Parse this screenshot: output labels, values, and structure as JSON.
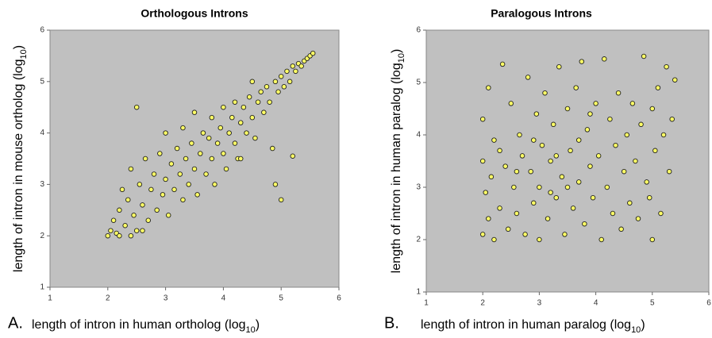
{
  "chart_data": [
    {
      "type": "scatter",
      "panel_label": "A.",
      "title": "Orthologous Introns",
      "x_label": {
        "text": "length of intron in human ortholog (log",
        "sub": "10",
        "end": ")"
      },
      "y_label": {
        "text": "length of intron in mouse ortholog (log",
        "sub": "10",
        "end": ")"
      },
      "xlim": [
        1,
        6
      ],
      "ylim": [
        1,
        6
      ],
      "xticks": [
        1,
        2,
        3,
        4,
        5,
        6
      ],
      "yticks": [
        1,
        2,
        3,
        4,
        5,
        6
      ],
      "background": "#c0c0c0",
      "color": "#ffff66",
      "x": [
        2.0,
        2.05,
        2.1,
        2.15,
        2.2,
        2.25,
        2.3,
        2.35,
        2.4,
        2.45,
        2.5,
        2.5,
        2.55,
        2.6,
        2.65,
        2.7,
        2.75,
        2.8,
        2.85,
        2.9,
        2.95,
        3.0,
        3.0,
        3.05,
        3.1,
        3.15,
        3.2,
        3.25,
        3.3,
        3.3,
        3.35,
        3.4,
        3.45,
        3.5,
        3.5,
        3.55,
        3.6,
        3.65,
        3.7,
        3.75,
        3.8,
        3.8,
        3.85,
        3.9,
        3.95,
        4.0,
        4.0,
        4.05,
        4.1,
        4.15,
        4.2,
        4.2,
        4.25,
        4.3,
        4.35,
        4.4,
        4.45,
        4.5,
        4.5,
        4.55,
        4.6,
        4.65,
        4.7,
        4.75,
        4.8,
        4.85,
        4.9,
        4.9,
        4.95,
        5.0,
        5.0,
        5.05,
        5.1,
        5.15,
        5.2,
        5.2,
        5.25,
        5.3,
        5.35,
        5.4,
        5.45,
        5.5,
        5.55,
        4.3,
        2.2,
        2.4,
        2.6
      ],
      "y": [
        2.0,
        2.1,
        2.3,
        2.05,
        2.5,
        2.9,
        2.2,
        2.7,
        3.3,
        2.4,
        4.5,
        2.1,
        3.0,
        2.6,
        3.5,
        2.3,
        2.9,
        3.2,
        2.5,
        3.6,
        2.8,
        3.1,
        4.0,
        2.4,
        3.4,
        2.9,
        3.7,
        3.2,
        2.7,
        4.1,
        3.5,
        3.0,
        3.8,
        3.3,
        4.4,
        2.8,
        3.6,
        4.0,
        3.2,
        3.9,
        3.5,
        4.3,
        3.0,
        3.8,
        4.1,
        3.6,
        4.5,
        3.3,
        4.0,
        4.3,
        3.8,
        4.6,
        3.5,
        4.2,
        4.5,
        4.0,
        4.7,
        4.3,
        5.0,
        3.9,
        4.6,
        4.8,
        4.4,
        4.9,
        4.6,
        3.7,
        5.0,
        3.0,
        4.8,
        5.1,
        2.7,
        4.9,
        5.2,
        5.0,
        5.3,
        3.55,
        5.2,
        5.35,
        5.3,
        5.4,
        5.45,
        5.5,
        5.55,
        3.5,
        2.0,
        2.0,
        2.1
      ]
    },
    {
      "type": "scatter",
      "panel_label": "B.",
      "title": "Paralogous Introns",
      "x_label": {
        "text": "length of intron in human paralog (log",
        "sub": "10",
        "end": ")"
      },
      "y_label": {
        "text": "length of intron in human paralog (log",
        "sub": "10",
        "end": ")"
      },
      "xlim": [
        1,
        6
      ],
      "ylim": [
        1,
        6
      ],
      "xticks": [
        1,
        2,
        3,
        4,
        5,
        6
      ],
      "yticks": [
        1,
        2,
        3,
        4,
        5,
        6
      ],
      "background": "#c0c0c0",
      "color": "#ffff66",
      "x": [
        2.0,
        2.0,
        2.0,
        2.05,
        2.1,
        2.1,
        2.15,
        2.2,
        2.2,
        2.3,
        2.35,
        2.4,
        2.45,
        2.5,
        2.55,
        2.6,
        2.65,
        2.7,
        2.75,
        2.8,
        2.85,
        2.9,
        2.95,
        3.0,
        3.0,
        3.05,
        3.1,
        3.15,
        3.2,
        3.25,
        3.3,
        3.35,
        3.4,
        3.45,
        3.5,
        3.55,
        3.6,
        3.65,
        3.7,
        3.75,
        3.8,
        3.85,
        3.9,
        3.95,
        4.0,
        4.05,
        4.1,
        4.15,
        4.2,
        4.25,
        4.3,
        4.35,
        4.4,
        4.45,
        4.5,
        4.55,
        4.6,
        4.65,
        4.7,
        4.75,
        4.8,
        4.85,
        4.9,
        4.95,
        5.0,
        5.0,
        5.05,
        5.1,
        5.15,
        5.2,
        5.25,
        5.3,
        5.35,
        5.4,
        2.3,
        2.6,
        2.9,
        3.2,
        3.5,
        3.7,
        3.9,
        3.3
      ],
      "y": [
        2.1,
        3.5,
        4.3,
        2.9,
        2.4,
        4.9,
        3.2,
        2.0,
        3.9,
        2.6,
        5.35,
        3.4,
        2.2,
        4.6,
        3.0,
        2.5,
        4.0,
        3.6,
        2.1,
        5.1,
        3.3,
        2.7,
        4.4,
        3.0,
        2.0,
        3.8,
        4.8,
        2.4,
        3.5,
        4.2,
        2.8,
        5.3,
        3.2,
        2.1,
        4.5,
        3.7,
        2.6,
        4.9,
        3.1,
        5.4,
        2.3,
        4.1,
        3.4,
        2.8,
        4.6,
        3.6,
        2.0,
        5.45,
        3.0,
        4.3,
        2.5,
        3.8,
        4.8,
        2.2,
        3.3,
        4.0,
        2.7,
        4.6,
        3.5,
        2.4,
        4.2,
        5.5,
        3.1,
        2.8,
        4.5,
        2.0,
        3.7,
        4.9,
        2.5,
        4.0,
        5.3,
        3.3,
        4.3,
        5.05,
        3.7,
        3.3,
        3.9,
        2.9,
        3.0,
        3.9,
        4.4,
        3.6
      ]
    }
  ]
}
